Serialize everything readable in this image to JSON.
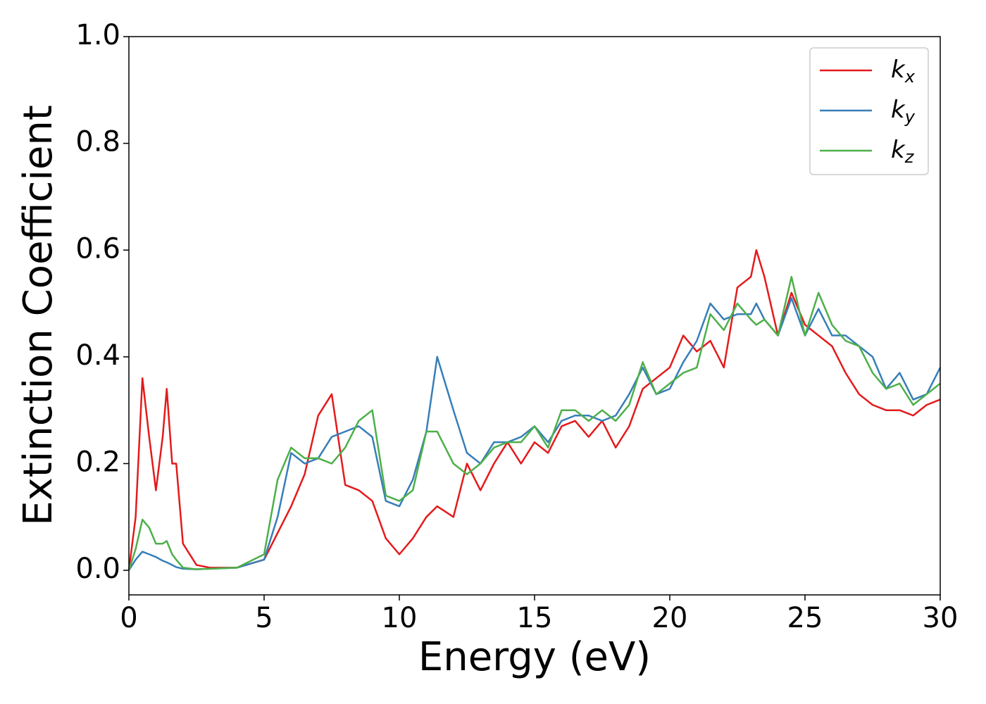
{
  "chart_data": {
    "type": "line",
    "xlabel": "Energy (eV)",
    "ylabel": "Extinction Coefficient",
    "x": [
      0,
      0.25,
      0.5,
      0.75,
      1.0,
      1.25,
      1.4,
      1.6,
      1.75,
      2.0,
      2.5,
      3,
      4,
      5,
      5.5,
      6,
      6.5,
      7,
      7.5,
      8,
      8.5,
      9,
      9.5,
      10,
      10.5,
      11,
      11.4,
      12,
      12.5,
      13,
      13.5,
      14,
      14.5,
      15,
      15.5,
      16,
      16.5,
      17,
      17.5,
      18,
      18.5,
      19,
      19.5,
      20,
      20.5,
      21,
      21.5,
      22,
      22.5,
      23,
      23.2,
      23.5,
      24,
      24.5,
      25,
      25.5,
      26,
      26.5,
      27,
      27.5,
      28,
      28.5,
      29,
      29.5,
      30
    ],
    "series": [
      {
        "name": "kx",
        "color": "#e41a1c",
        "values": [
          0,
          0.1,
          0.36,
          0.25,
          0.15,
          0.25,
          0.34,
          0.2,
          0.2,
          0.05,
          0.01,
          0.005,
          0.005,
          0.02,
          0.07,
          0.12,
          0.18,
          0.29,
          0.33,
          0.16,
          0.15,
          0.13,
          0.06,
          0.03,
          0.06,
          0.1,
          0.12,
          0.1,
          0.2,
          0.15,
          0.2,
          0.24,
          0.2,
          0.24,
          0.22,
          0.27,
          0.28,
          0.25,
          0.28,
          0.23,
          0.27,
          0.34,
          0.36,
          0.38,
          0.44,
          0.41,
          0.43,
          0.38,
          0.53,
          0.55,
          0.6,
          0.55,
          0.44,
          0.52,
          0.46,
          0.44,
          0.42,
          0.37,
          0.33,
          0.31,
          0.3,
          0.3,
          0.29,
          0.31,
          0.32
        ]
      },
      {
        "name": "ky",
        "color": "#377eb8",
        "values": [
          0,
          0.02,
          0.035,
          0.03,
          0.025,
          0.018,
          0.015,
          0.01,
          0.006,
          0.003,
          0.002,
          0.003,
          0.005,
          0.02,
          0.1,
          0.22,
          0.2,
          0.21,
          0.25,
          0.26,
          0.27,
          0.25,
          0.13,
          0.12,
          0.17,
          0.26,
          0.4,
          0.3,
          0.22,
          0.2,
          0.24,
          0.24,
          0.25,
          0.27,
          0.24,
          0.28,
          0.29,
          0.29,
          0.28,
          0.29,
          0.33,
          0.38,
          0.33,
          0.34,
          0.39,
          0.43,
          0.5,
          0.47,
          0.48,
          0.48,
          0.5,
          0.47,
          0.44,
          0.51,
          0.44,
          0.49,
          0.44,
          0.44,
          0.42,
          0.4,
          0.34,
          0.37,
          0.32,
          0.33,
          0.38
        ]
      },
      {
        "name": "kz",
        "color": "#4daf4a",
        "values": [
          0,
          0.04,
          0.095,
          0.08,
          0.05,
          0.05,
          0.055,
          0.03,
          0.02,
          0.005,
          0.002,
          0.003,
          0.005,
          0.03,
          0.17,
          0.23,
          0.21,
          0.21,
          0.2,
          0.23,
          0.28,
          0.3,
          0.14,
          0.13,
          0.15,
          0.26,
          0.26,
          0.2,
          0.18,
          0.2,
          0.23,
          0.24,
          0.24,
          0.27,
          0.23,
          0.3,
          0.3,
          0.28,
          0.3,
          0.28,
          0.31,
          0.39,
          0.33,
          0.35,
          0.37,
          0.38,
          0.48,
          0.45,
          0.5,
          0.47,
          0.46,
          0.47,
          0.44,
          0.55,
          0.44,
          0.52,
          0.46,
          0.43,
          0.42,
          0.37,
          0.34,
          0.35,
          0.31,
          0.33,
          0.35
        ]
      }
    ],
    "xlim": [
      0,
      30
    ],
    "xticks": [
      0,
      5,
      10,
      15,
      20,
      25,
      30
    ],
    "ylim": [
      -0.046,
      1.0
    ],
    "yticks": [
      {
        "value": 0,
        "label": "0.0"
      },
      0.2,
      0.4,
      0.6,
      0.8,
      {
        "value": 1,
        "label": "1.0"
      }
    ],
    "legend": "upper right",
    "grid": false
  }
}
